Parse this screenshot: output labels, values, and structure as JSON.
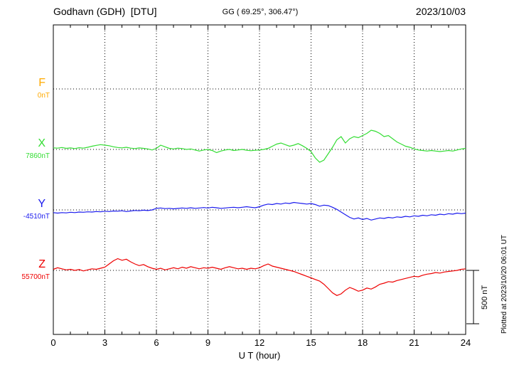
{
  "header": {
    "station": "Godhavn (GDH)  [DTU]",
    "coords": "GG ( 69.25°, 306.47°)",
    "date": "2023/10/03"
  },
  "plotted_at": "Plotted at 2023/10/20 06:01 UT",
  "scale_bar": {
    "label": "500 nT",
    "nT": 500
  },
  "colors": {
    "F": "#ffaa00",
    "X": "#33dd33",
    "Y": "#1a1aee",
    "Z": "#ee0000",
    "frame": "#000000"
  },
  "chart_data": {
    "type": "line",
    "title": "Godhavn (GDH) [DTU] magnetogram 2023/10/03",
    "xlabel": "U T (hour)",
    "ylabel": "",
    "x_ticks": [
      0,
      3,
      6,
      9,
      12,
      15,
      18,
      21,
      24
    ],
    "x_start": 0,
    "x_end": 24,
    "x_step": 0.25,
    "scale_nT": 500,
    "grid": "dotted",
    "legend": "left-margin component labels",
    "series": [
      {
        "name": "F",
        "baseline_label": "0nT",
        "baseline_nT": 0,
        "color": "#ffaa00",
        "plotted": false,
        "values_offset_nT": []
      },
      {
        "name": "X",
        "baseline_label": "7860nT",
        "baseline_nT": 7860,
        "color": "#33dd33",
        "plotted": true,
        "values_offset_nT": [
          15,
          12,
          18,
          10,
          14,
          8,
          16,
          12,
          20,
          30,
          38,
          45,
          40,
          35,
          25,
          18,
          15,
          20,
          12,
          8,
          14,
          10,
          5,
          -5,
          10,
          40,
          25,
          10,
          5,
          12,
          8,
          0,
          5,
          -5,
          -15,
          -5,
          0,
          -10,
          -30,
          -15,
          -5,
          0,
          -10,
          -5,
          0,
          -8,
          -12,
          -8,
          -5,
          0,
          10,
          30,
          50,
          60,
          45,
          30,
          40,
          55,
          35,
          10,
          -20,
          -80,
          -120,
          -100,
          -40,
          20,
          90,
          120,
          60,
          100,
          120,
          110,
          130,
          150,
          180,
          170,
          150,
          120,
          130,
          100,
          70,
          50,
          30,
          20,
          5,
          -5,
          -10,
          -15,
          -10,
          -15,
          -20,
          -15,
          -10,
          -15,
          -5,
          5,
          10
        ]
      },
      {
        "name": "Y",
        "baseline_label": "-4510nT",
        "baseline_nT": -4510,
        "color": "#1a1aee",
        "plotted": true,
        "values_offset_nT": [
          -25,
          -30,
          -25,
          -28,
          -22,
          -25,
          -20,
          -22,
          -18,
          -20,
          -15,
          -18,
          -12,
          -15,
          -10,
          -12,
          -8,
          -15,
          -10,
          -5,
          -8,
          -3,
          -6,
          0,
          15,
          18,
          12,
          15,
          10,
          14,
          18,
          15,
          20,
          15,
          18,
          22,
          18,
          25,
          20,
          15,
          18,
          22,
          25,
          20,
          25,
          30,
          25,
          20,
          30,
          45,
          55,
          50,
          60,
          55,
          65,
          60,
          70,
          65,
          60,
          55,
          60,
          50,
          35,
          45,
          40,
          25,
          5,
          -20,
          -45,
          -70,
          -85,
          -75,
          -90,
          -80,
          -95,
          -85,
          -75,
          -80,
          -70,
          -75,
          -65,
          -70,
          -60,
          -65,
          -55,
          -60,
          -50,
          -55,
          -45,
          -50,
          -40,
          -45,
          -35,
          -40,
          -30,
          -35,
          -30
        ]
      },
      {
        "name": "Z",
        "baseline_label": "55700nT",
        "baseline_nT": 55700,
        "color": "#ee0000",
        "plotted": true,
        "values_offset_nT": [
          10,
          25,
          15,
          5,
          10,
          0,
          8,
          -5,
          5,
          15,
          10,
          20,
          30,
          60,
          90,
          110,
          95,
          105,
          80,
          60,
          45,
          55,
          35,
          20,
          10,
          20,
          5,
          15,
          25,
          15,
          30,
          20,
          35,
          25,
          15,
          25,
          20,
          30,
          20,
          10,
          25,
          35,
          25,
          15,
          20,
          10,
          20,
          15,
          25,
          45,
          60,
          40,
          30,
          20,
          10,
          0,
          -10,
          -25,
          -40,
          -55,
          -70,
          -85,
          -100,
          -130,
          -170,
          -210,
          -235,
          -220,
          -185,
          -160,
          -175,
          -195,
          -185,
          -165,
          -175,
          -155,
          -130,
          -120,
          -105,
          -110,
          -95,
          -85,
          -75,
          -65,
          -55,
          -60,
          -45,
          -35,
          -30,
          -20,
          -25,
          -15,
          -10,
          -5,
          0,
          10,
          15
        ]
      }
    ]
  }
}
